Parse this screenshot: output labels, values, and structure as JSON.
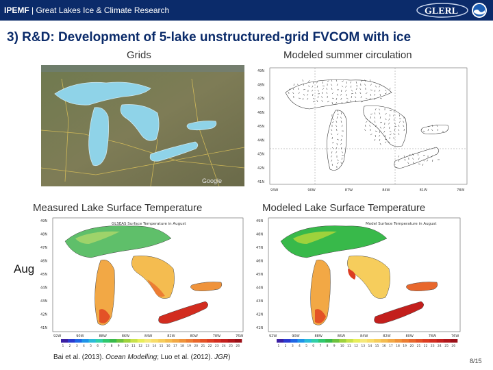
{
  "header": {
    "org": "IPEMF",
    "separator": " | ",
    "subtitle": "Great Lakes Ice & Climate Research",
    "logo_text": "GLERL",
    "colors": {
      "bar": "#0b2b6a",
      "text": "#ffffff"
    }
  },
  "slide_title": "3) R&D: Development of 5-lake unstructured-grid FVCOM with ice",
  "labels": {
    "grids": "Grids",
    "modeled_circulation": "Modeled summer circulation",
    "measured_lst": "Measured Lake Surface Temperature",
    "modeled_lst": "Modeled Lake Surface Temperature",
    "month": "Aug"
  },
  "panels": {
    "grids_image": {
      "watermark": "Google"
    },
    "measured_map": {
      "inner_title": "GLSEAS Surface Temperature in August"
    },
    "modeled_map": {
      "inner_title": "Model Surface Temperature in August"
    }
  },
  "axes": {
    "circ_x": [
      "93W",
      "90W",
      "87W",
      "84W",
      "81W",
      "78W"
    ],
    "circ_y": [
      "49N",
      "48N",
      "47N",
      "46N",
      "45N",
      "44N",
      "43N",
      "42N",
      "41N"
    ],
    "map_x": [
      "92W",
      "90W",
      "88W",
      "86W",
      "84W",
      "82W",
      "80W",
      "78W",
      "76W"
    ],
    "map_y": [
      "49N",
      "48N",
      "47N",
      "46N",
      "45N",
      "44N",
      "43N",
      "42N",
      "41N"
    ]
  },
  "colorbar": {
    "ticks": [
      "1",
      "2",
      "3",
      "4",
      "5",
      "6",
      "7",
      "8",
      "9",
      "10",
      "11",
      "12",
      "13",
      "14",
      "15",
      "16",
      "17",
      "18",
      "19",
      "20",
      "21",
      "22",
      "23",
      "24",
      "25",
      "26"
    ],
    "colors": [
      "#3b1fa3",
      "#2a3ad0",
      "#1f66e5",
      "#1e94e8",
      "#2bbbd8",
      "#30cfa8",
      "#2fc86e",
      "#38b94a",
      "#6cc23e",
      "#9ed23c",
      "#c8e24a",
      "#e8ee5a",
      "#f6e97a",
      "#f8dd6a",
      "#f6cd5c",
      "#f4bc50",
      "#f2a845",
      "#ef933b",
      "#ec7d33",
      "#e8672c",
      "#e35226",
      "#dc3d22",
      "#d22c1f",
      "#c31f1c",
      "#b0161a",
      "#9a0f17"
    ]
  },
  "citation": {
    "part1": "Bai et al. (2013). ",
    "journal1": "Ocean Modelling",
    "part2": "; Luo et al. (2012). ",
    "journal2": "JGR",
    "part3": ")"
  },
  "page_number": "8/15"
}
